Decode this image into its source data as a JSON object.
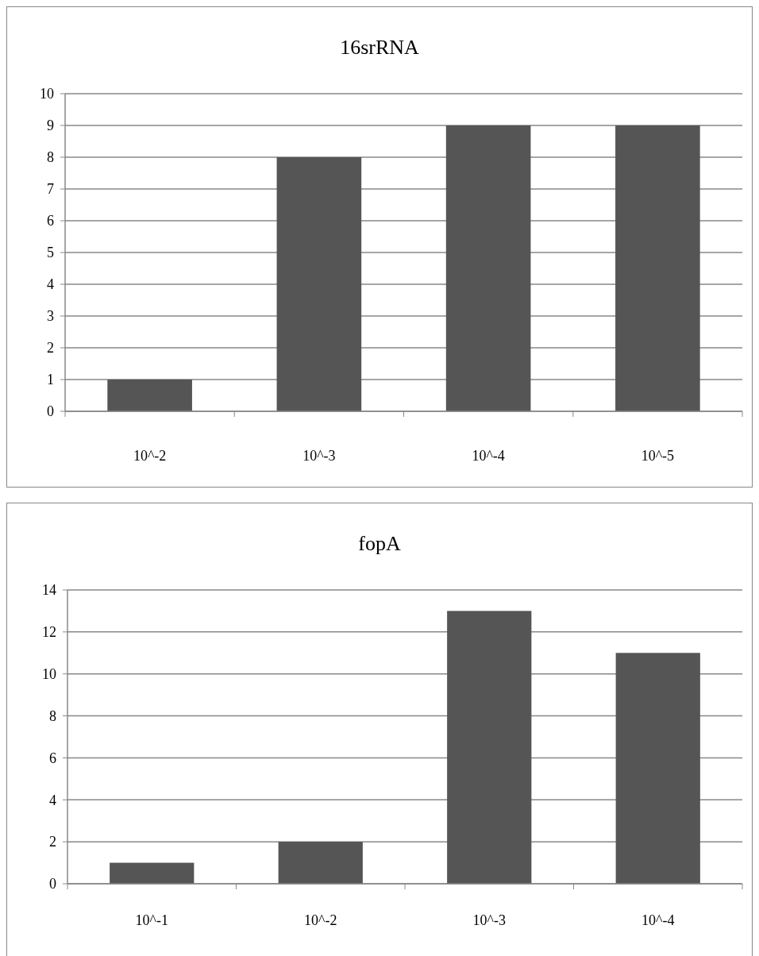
{
  "chart_data": [
    {
      "type": "bar",
      "title": "16srRNA",
      "categories": [
        "10^-2",
        "10^-3",
        "10^-4",
        "10^-5"
      ],
      "values": [
        1,
        8,
        9,
        9
      ],
      "color": "#555555",
      "ylim": [
        0,
        10
      ],
      "yticks": [
        0,
        1,
        2,
        3,
        4,
        5,
        6,
        7,
        8,
        9,
        10
      ],
      "grid": "y"
    },
    {
      "type": "bar",
      "title": "fopA",
      "categories": [
        "10^-1",
        "10^-2",
        "10^-3",
        "10^-4"
      ],
      "values": [
        1,
        2,
        13,
        11
      ],
      "color": "#555555",
      "ylim": [
        0,
        14
      ],
      "yticks": [
        0,
        2,
        4,
        6,
        8,
        10,
        12,
        14
      ],
      "grid": "y"
    }
  ]
}
